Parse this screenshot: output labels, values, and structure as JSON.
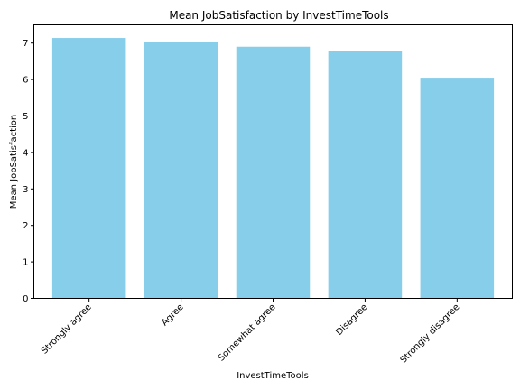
{
  "chart_data": {
    "type": "bar",
    "title": "Mean JobSatisfaction by InvestTimeTools",
    "xlabel": "InvestTimeTools",
    "ylabel": "Mean JobSatisfaction",
    "categories": [
      "Strongly agree",
      "Agree",
      "Somewhat agree",
      "Disagree",
      "Strongly disagree"
    ],
    "values": [
      7.14,
      7.04,
      6.9,
      6.77,
      6.05
    ],
    "ylim": [
      0,
      7.5
    ],
    "yticks": [
      0,
      1,
      2,
      3,
      4,
      5,
      6,
      7
    ],
    "bar_color": "#87ceeb",
    "grid": false,
    "xtick_rotation": 45
  }
}
